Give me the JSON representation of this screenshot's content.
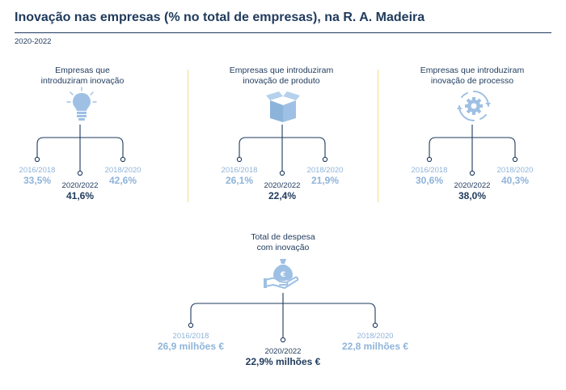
{
  "title": "Inovação nas empresas (% no total de empresas), na R. A. Madeira",
  "period": "2020-2022",
  "colors": {
    "dark": "#1f3a5c",
    "light": "#8fb4da",
    "icon": "#9ec0e4",
    "divider": "#f2dc8a"
  },
  "panels": [
    {
      "title": "Empresas que\nintroduziram inovação",
      "icon": "lightbulb-icon",
      "left": {
        "period": "2016/2018",
        "value": "33,5%"
      },
      "center": {
        "period": "2020/2022",
        "value": "41,6%"
      },
      "right": {
        "period": "2018/2020",
        "value": "42,6%"
      }
    },
    {
      "title": "Empresas que introduziram\ninovação de produto",
      "icon": "box-icon",
      "left": {
        "period": "2016/2018",
        "value": "26,1%"
      },
      "center": {
        "period": "2020/2022",
        "value": "22,4%"
      },
      "right": {
        "period": "2018/2020",
        "value": "21,9%"
      }
    },
    {
      "title": "Empresas que introduziram\ninovação de processo",
      "icon": "process-gear-icon",
      "left": {
        "period": "2016/2018",
        "value": "30,6%"
      },
      "center": {
        "period": "2020/2022",
        "value": "38,0%"
      },
      "right": {
        "period": "2018/2020",
        "value": "40,3%"
      }
    },
    {
      "title": "Total de despesa\ncom inovação",
      "icon": "money-bag-hand-icon",
      "left": {
        "period": "2016/2018",
        "value": "26,9 milhões €"
      },
      "center": {
        "period": "2020/2022",
        "value": "22,9% milhões €"
      },
      "right": {
        "period": "2018/2020",
        "value": "22,8 milhões €"
      }
    }
  ],
  "chart_data": {
    "type": "table",
    "title": "Inovação nas empresas (% no total de empresas), na R. A. Madeira",
    "subtitle": "2020-2022",
    "columns": [
      "2016/2018",
      "2018/2020",
      "2020/2022"
    ],
    "rows": [
      {
        "name": "Empresas que introduziram inovação",
        "values": [
          33.5,
          42.6,
          41.6
        ],
        "unit": "%"
      },
      {
        "name": "Empresas que introduziram inovação de produto",
        "values": [
          26.1,
          21.9,
          22.4
        ],
        "unit": "%"
      },
      {
        "name": "Empresas que introduziram inovação de processo",
        "values": [
          30.6,
          40.3,
          38.0
        ],
        "unit": "%"
      },
      {
        "name": "Total de despesa com inovação",
        "values": [
          26.9,
          22.8,
          22.9
        ],
        "unit": "milhões €"
      }
    ]
  }
}
